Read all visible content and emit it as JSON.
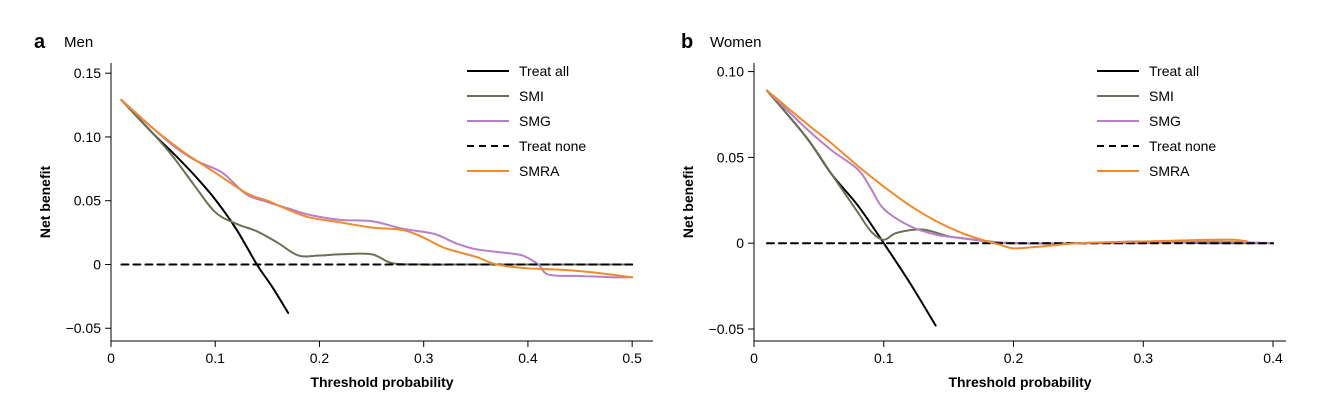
{
  "chart_data": [
    {
      "type": "line",
      "panel_label": "a",
      "title": "Men",
      "xlabel": "Threshold probability",
      "ylabel": "Net benefit",
      "xlim": [
        0,
        0.52
      ],
      "ylim": [
        -0.06,
        0.158
      ],
      "x_ticks": [
        0,
        0.1,
        0.2,
        0.3,
        0.4,
        0.5
      ],
      "x_tick_labels": [
        "0",
        "0.1",
        "0.2",
        "0.3",
        "0.4",
        "0.5"
      ],
      "y_ticks": [
        -0.05,
        0,
        0.05,
        0.1,
        0.15
      ],
      "y_tick_labels": [
        "−0.05",
        "0",
        "0.05",
        "0.10",
        "0.15"
      ],
      "legend_position": "top-right",
      "series": [
        {
          "name": "Treat all",
          "color": "#000000",
          "dash": "solid",
          "points": [
            [
              0.01,
              0.129
            ],
            [
              0.04,
              0.103
            ],
            [
              0.06,
              0.087
            ],
            [
              0.08,
              0.07
            ],
            [
              0.1,
              0.051
            ],
            [
              0.12,
              0.028
            ],
            [
              0.14,
              0.0
            ],
            [
              0.155,
              -0.018
            ],
            [
              0.17,
              -0.038
            ]
          ]
        },
        {
          "name": "SMI",
          "color": "#6b7154",
          "dash": "solid",
          "points": [
            [
              0.01,
              0.129
            ],
            [
              0.04,
              0.103
            ],
            [
              0.06,
              0.084
            ],
            [
              0.08,
              0.062
            ],
            [
              0.1,
              0.041
            ],
            [
              0.12,
              0.032
            ],
            [
              0.14,
              0.026
            ],
            [
              0.16,
              0.017
            ],
            [
              0.18,
              0.007
            ],
            [
              0.2,
              0.007
            ],
            [
              0.22,
              0.008
            ],
            [
              0.25,
              0.008
            ],
            [
              0.27,
              0.001
            ],
            [
              0.3,
              0.0
            ],
            [
              0.35,
              0.0
            ],
            [
              0.4,
              0.0
            ],
            [
              0.45,
              0.0
            ],
            [
              0.5,
              0.0
            ]
          ]
        },
        {
          "name": "SMG",
          "color": "#b77fc8",
          "dash": "solid",
          "points": [
            [
              0.01,
              0.129
            ],
            [
              0.04,
              0.107
            ],
            [
              0.06,
              0.093
            ],
            [
              0.08,
              0.082
            ],
            [
              0.1,
              0.075
            ],
            [
              0.11,
              0.07
            ],
            [
              0.13,
              0.055
            ],
            [
              0.15,
              0.049
            ],
            [
              0.17,
              0.044
            ],
            [
              0.19,
              0.039
            ],
            [
              0.22,
              0.035
            ],
            [
              0.25,
              0.034
            ],
            [
              0.28,
              0.028
            ],
            [
              0.31,
              0.024
            ],
            [
              0.33,
              0.017
            ],
            [
              0.35,
              0.012
            ],
            [
              0.38,
              0.009
            ],
            [
              0.395,
              0.007
            ],
            [
              0.41,
              0.0
            ],
            [
              0.42,
              -0.008
            ],
            [
              0.45,
              -0.009
            ],
            [
              0.48,
              -0.01
            ],
            [
              0.5,
              -0.01
            ]
          ]
        },
        {
          "name": "Treat none",
          "color": "#000000",
          "dash": "dashed",
          "points": [
            [
              0.01,
              0.0
            ],
            [
              0.5,
              0.0
            ]
          ]
        },
        {
          "name": "SMRA",
          "color": "#f08a2c",
          "dash": "solid",
          "points": [
            [
              0.01,
              0.129
            ],
            [
              0.04,
              0.107
            ],
            [
              0.07,
              0.088
            ],
            [
              0.1,
              0.072
            ],
            [
              0.13,
              0.056
            ],
            [
              0.15,
              0.05
            ],
            [
              0.17,
              0.043
            ],
            [
              0.19,
              0.037
            ],
            [
              0.22,
              0.033
            ],
            [
              0.25,
              0.029
            ],
            [
              0.28,
              0.027
            ],
            [
              0.3,
              0.021
            ],
            [
              0.32,
              0.013
            ],
            [
              0.35,
              0.006
            ],
            [
              0.37,
              0.0
            ],
            [
              0.4,
              -0.003
            ],
            [
              0.43,
              -0.004
            ],
            [
              0.46,
              -0.006
            ],
            [
              0.5,
              -0.01
            ]
          ]
        }
      ]
    },
    {
      "type": "line",
      "panel_label": "b",
      "title": "Women",
      "xlabel": "Threshold probability",
      "ylabel": "Net benefit",
      "xlim": [
        0,
        0.41
      ],
      "ylim": [
        -0.057,
        0.105
      ],
      "x_ticks": [
        0,
        0.1,
        0.2,
        0.3,
        0.4
      ],
      "x_tick_labels": [
        "0",
        "0.1",
        "0.2",
        "0.3",
        "0.4"
      ],
      "y_ticks": [
        -0.05,
        0,
        0.05,
        0.1
      ],
      "y_tick_labels": [
        "−0.05",
        "0",
        "0.05",
        "0.10"
      ],
      "legend_position": "top-right",
      "series": [
        {
          "name": "Treat all",
          "color": "#000000",
          "dash": "solid",
          "points": [
            [
              0.01,
              0.089
            ],
            [
              0.04,
              0.062
            ],
            [
              0.06,
              0.04
            ],
            [
              0.08,
              0.022
            ],
            [
              0.1,
              0.0
            ],
            [
              0.12,
              -0.023
            ],
            [
              0.14,
              -0.048
            ]
          ]
        },
        {
          "name": "SMI",
          "color": "#6b7154",
          "dash": "solid",
          "points": [
            [
              0.01,
              0.089
            ],
            [
              0.04,
              0.062
            ],
            [
              0.06,
              0.04
            ],
            [
              0.08,
              0.018
            ],
            [
              0.09,
              0.007
            ],
            [
              0.1,
              0.002
            ],
            [
              0.11,
              0.006
            ],
            [
              0.13,
              0.008
            ],
            [
              0.15,
              0.004
            ],
            [
              0.17,
              0.002
            ],
            [
              0.2,
              0.0
            ],
            [
              0.25,
              0.0
            ],
            [
              0.3,
              0.001
            ],
            [
              0.35,
              0.0
            ],
            [
              0.4,
              0.0
            ]
          ]
        },
        {
          "name": "SMG",
          "color": "#b77fc8",
          "dash": "solid",
          "points": [
            [
              0.01,
              0.089
            ],
            [
              0.04,
              0.067
            ],
            [
              0.06,
              0.054
            ],
            [
              0.08,
              0.043
            ],
            [
              0.09,
              0.032
            ],
            [
              0.1,
              0.02
            ],
            [
              0.12,
              0.01
            ],
            [
              0.14,
              0.005
            ],
            [
              0.16,
              0.003
            ],
            [
              0.18,
              0.001
            ],
            [
              0.2,
              0.0
            ],
            [
              0.25,
              0.0
            ],
            [
              0.3,
              0.0
            ],
            [
              0.35,
              0.001
            ],
            [
              0.4,
              0.0
            ]
          ]
        },
        {
          "name": "Treat none",
          "color": "#000000",
          "dash": "dashed",
          "points": [
            [
              0.01,
              0.0
            ],
            [
              0.4,
              0.0
            ]
          ]
        },
        {
          "name": "SMRA",
          "color": "#f08a2c",
          "dash": "solid",
          "points": [
            [
              0.01,
              0.089
            ],
            [
              0.04,
              0.07
            ],
            [
              0.06,
              0.058
            ],
            [
              0.08,
              0.045
            ],
            [
              0.1,
              0.033
            ],
            [
              0.12,
              0.022
            ],
            [
              0.14,
              0.013
            ],
            [
              0.16,
              0.006
            ],
            [
              0.18,
              0.001
            ],
            [
              0.19,
              -0.001
            ],
            [
              0.2,
              -0.003
            ],
            [
              0.22,
              -0.002
            ],
            [
              0.25,
              0.0
            ],
            [
              0.3,
              0.001
            ],
            [
              0.35,
              0.002
            ],
            [
              0.37,
              0.002
            ],
            [
              0.38,
              0.001
            ]
          ]
        }
      ]
    }
  ]
}
